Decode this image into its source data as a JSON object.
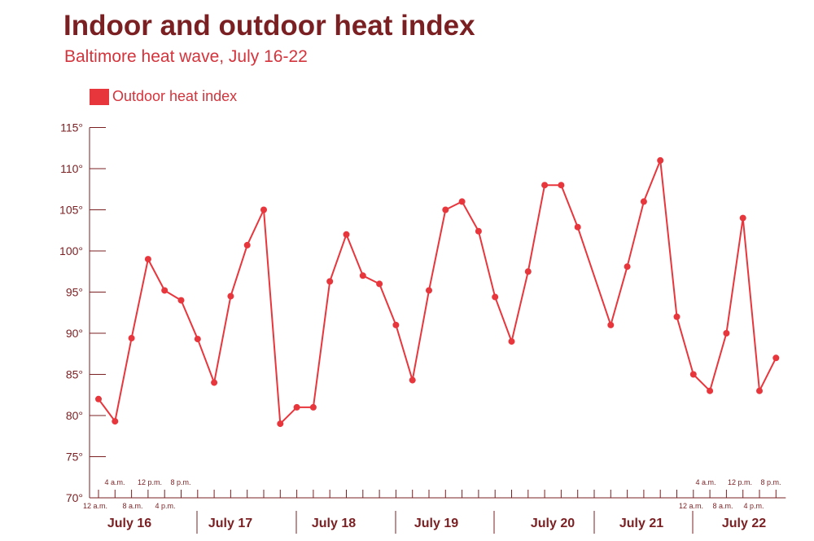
{
  "chart_data": {
    "type": "line",
    "title": "Indoor and outdoor heat index",
    "subtitle": "Baltimore heat wave, July 16-22",
    "legend": "top-left",
    "series": [
      {
        "name": "Outdoor heat index",
        "color": "#e8363d",
        "values": [
          82,
          79.3,
          89.4,
          99,
          95.2,
          94,
          89.3,
          84,
          94.5,
          100.7,
          105,
          79,
          81,
          81,
          96.3,
          102,
          97,
          96,
          91,
          84.3,
          95.2,
          105,
          106,
          102.4,
          94.4,
          89,
          97.5,
          108,
          108,
          102.9,
          null,
          91,
          98.1,
          106,
          111,
          92,
          85,
          83,
          90,
          104,
          83,
          87
        ]
      }
    ],
    "ylim": [
      70,
      115
    ],
    "yticks": [
      "70°",
      "75°",
      "80°",
      "85°",
      "90°",
      "95°",
      "100°",
      "105°",
      "110°",
      "115°"
    ],
    "hour_labels_start": [
      "12 a.m.",
      "4 a.m.",
      "8 a.m.",
      "12 p.m.",
      "4 p.m.",
      "8 p.m."
    ],
    "hour_labels_end": [
      "12 a.m.",
      "4 a.m.",
      "8 a.m.",
      "12 p.m.",
      "4 p.m.",
      "8 p.m."
    ],
    "days": [
      "July 16",
      "July 17",
      "July 18",
      "July 19",
      "July 20",
      "July 21",
      "July 22"
    ]
  }
}
